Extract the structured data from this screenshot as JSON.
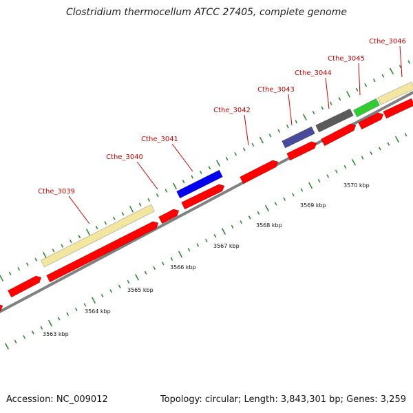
{
  "title": "Clostridium thermocellum ATCC 27405, complete genome",
  "footer": {
    "accession": "Accession: NC_009012",
    "summary": "Topology: circular; Length: 3,843,301 bp; Genes: 3,259"
  },
  "colors": {
    "cds": "#ff0000",
    "tick": "#2e8b2e",
    "backbone": "#808080",
    "label_line": "#cc0000",
    "pale_yellow": "#f2e6a0",
    "blue": "#0000ee",
    "slate_blue": "#4a4a9a",
    "dark_gray": "#5a5a5a",
    "green": "#33cc33"
  },
  "axis_labels": [
    {
      "kbp": 3563,
      "text": "3563 kbp"
    },
    {
      "kbp": 3564,
      "text": "3564 kbp"
    },
    {
      "kbp": 3565,
      "text": "3565 kbp"
    },
    {
      "kbp": 3566,
      "text": "3566 kbp"
    },
    {
      "kbp": 3567,
      "text": "3567 kbp"
    },
    {
      "kbp": 3568,
      "text": "3568 kbp"
    },
    {
      "kbp": 3569,
      "text": "3569 kbp"
    },
    {
      "kbp": 3570,
      "text": "3570 kbp"
    }
  ],
  "gene_labels": [
    {
      "text": "Cthe_3039"
    },
    {
      "text": "Cthe_3040"
    },
    {
      "text": "Cthe_3041"
    },
    {
      "text": "Cthe_3042"
    },
    {
      "text": "Cthe_3043"
    },
    {
      "text": "Cthe_3044"
    },
    {
      "text": "Cthe_3045"
    },
    {
      "text": "Cthe_3046"
    }
  ]
}
